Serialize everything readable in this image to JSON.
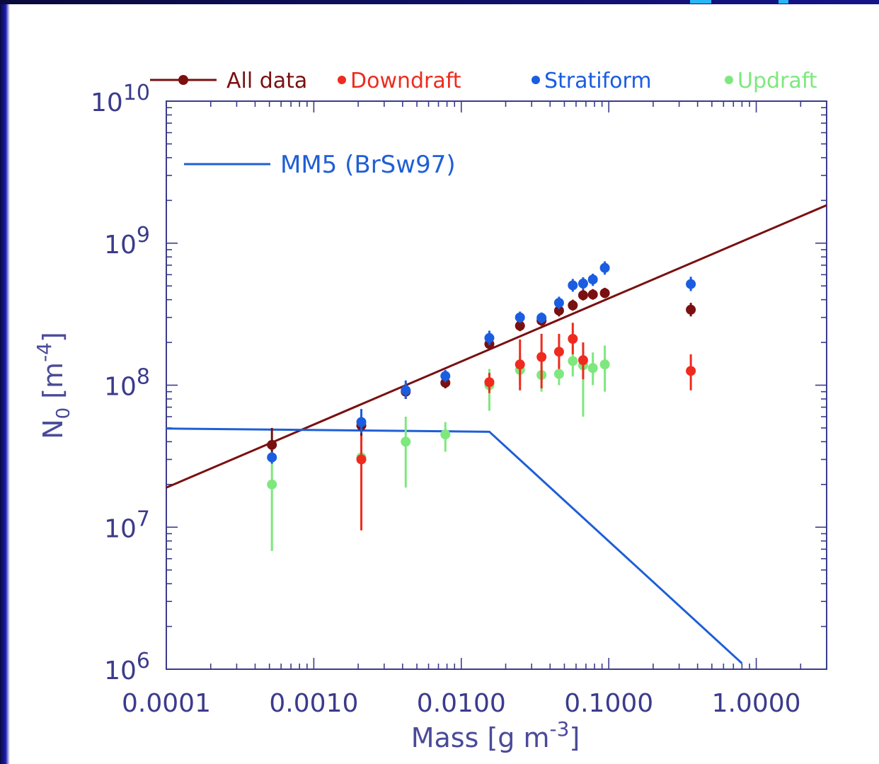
{
  "chart_data": {
    "type": "scatter",
    "xlabel": "Mass [g m",
    "xlabel_exp": "-3",
    "xlabel_close": "]",
    "ylabel": "N",
    "ylabel_sub": "0",
    "ylabel_unit": "[m",
    "ylabel_exp": "-4",
    "ylabel_close": "]",
    "x_scale": "log",
    "y_scale": "log",
    "xlim": [
      0.0001,
      3.0
    ],
    "ylim": [
      1000000,
      10000000000
    ],
    "x_tick_labels": [
      {
        "value": 0.0001,
        "label": "0.0001"
      },
      {
        "value": 0.001,
        "label": "0.0010"
      },
      {
        "value": 0.01,
        "label": "0.0100"
      },
      {
        "value": 0.1,
        "label": "0.1000"
      },
      {
        "value": 1.0,
        "label": "1.0000"
      }
    ],
    "y_tick_labels": [
      {
        "value": 1000000,
        "base": "10",
        "exp": "6"
      },
      {
        "value": 10000000,
        "base": "10",
        "exp": "7"
      },
      {
        "value": 100000000,
        "base": "10",
        "exp": "8"
      },
      {
        "value": 1000000000,
        "base": "10",
        "exp": "9"
      },
      {
        "value": 10000000000,
        "base": "10",
        "exp": "10"
      }
    ],
    "legend_top": [
      {
        "name": "All data",
        "color": "#7a1010",
        "style": "line-marker"
      },
      {
        "name": "Downdraft",
        "color": "#ee2b1e",
        "style": "marker"
      },
      {
        "name": "Stratiform",
        "color": "#1a5de0",
        "style": "marker"
      },
      {
        "name": "Updraft",
        "color": "#7de87d",
        "style": "marker"
      }
    ],
    "legend_inside": {
      "name": "MM5 (BrSw97)",
      "color": "#1f5fd6",
      "placement": "top-left"
    },
    "series": [
      {
        "name": "All data",
        "color": "#7a1010",
        "points": [
          {
            "x": 0.00052,
            "y": 38000000,
            "lo": 30000000,
            "hi": 50000000
          },
          {
            "x": 0.0021,
            "y": 52000000,
            "lo": 44000000,
            "hi": 62000000
          },
          {
            "x": 0.0042,
            "y": 90000000,
            "lo": 80000000,
            "hi": 102000000
          },
          {
            "x": 0.0078,
            "y": 104000000,
            "lo": 95000000,
            "hi": 114000000
          },
          {
            "x": 0.0155,
            "y": 195000000,
            "lo": 178000000,
            "hi": 214000000
          },
          {
            "x": 0.025,
            "y": 262000000,
            "lo": 240000000,
            "hi": 285000000
          },
          {
            "x": 0.035,
            "y": 285000000,
            "lo": 262000000,
            "hi": 310000000
          },
          {
            "x": 0.046,
            "y": 335000000,
            "lo": 305000000,
            "hi": 365000000
          },
          {
            "x": 0.057,
            "y": 365000000,
            "lo": 335000000,
            "hi": 400000000
          },
          {
            "x": 0.067,
            "y": 430000000,
            "lo": 395000000,
            "hi": 470000000
          },
          {
            "x": 0.078,
            "y": 435000000,
            "lo": 400000000,
            "hi": 475000000
          },
          {
            "x": 0.094,
            "y": 445000000,
            "lo": 410000000,
            "hi": 485000000
          },
          {
            "x": 0.36,
            "y": 340000000,
            "lo": 305000000,
            "hi": 380000000
          }
        ]
      },
      {
        "name": "Downdraft",
        "color": "#ee2b1e",
        "points": [
          {
            "x": 0.0021,
            "y": 30000000,
            "lo": 9500000,
            "hi": 45000000
          },
          {
            "x": 0.0155,
            "y": 105000000,
            "lo": 88000000,
            "hi": 122000000
          },
          {
            "x": 0.025,
            "y": 140000000,
            "lo": 92000000,
            "hi": 210000000
          },
          {
            "x": 0.035,
            "y": 158000000,
            "lo": 95000000,
            "hi": 230000000
          },
          {
            "x": 0.046,
            "y": 172000000,
            "lo": 130000000,
            "hi": 230000000
          },
          {
            "x": 0.057,
            "y": 212000000,
            "lo": 165000000,
            "hi": 275000000
          },
          {
            "x": 0.067,
            "y": 150000000,
            "lo": 110000000,
            "hi": 200000000
          },
          {
            "x": 0.36,
            "y": 126000000,
            "lo": 92000000,
            "hi": 165000000
          }
        ]
      },
      {
        "name": "Stratiform",
        "color": "#1a5de0",
        "points": [
          {
            "x": 0.00052,
            "y": 31000000,
            "lo": 28000000,
            "hi": 34000000
          },
          {
            "x": 0.0021,
            "y": 55000000,
            "lo": 46000000,
            "hi": 68000000
          },
          {
            "x": 0.0042,
            "y": 92000000,
            "lo": 80000000,
            "hi": 108000000
          },
          {
            "x": 0.0078,
            "y": 116000000,
            "lo": 105000000,
            "hi": 128000000
          },
          {
            "x": 0.0155,
            "y": 215000000,
            "lo": 192000000,
            "hi": 242000000
          },
          {
            "x": 0.025,
            "y": 300000000,
            "lo": 275000000,
            "hi": 330000000
          },
          {
            "x": 0.035,
            "y": 298000000,
            "lo": 272000000,
            "hi": 325000000
          },
          {
            "x": 0.046,
            "y": 380000000,
            "lo": 345000000,
            "hi": 420000000
          },
          {
            "x": 0.057,
            "y": 505000000,
            "lo": 455000000,
            "hi": 560000000
          },
          {
            "x": 0.067,
            "y": 520000000,
            "lo": 470000000,
            "hi": 575000000
          },
          {
            "x": 0.078,
            "y": 555000000,
            "lo": 500000000,
            "hi": 610000000
          },
          {
            "x": 0.094,
            "y": 670000000,
            "lo": 600000000,
            "hi": 745000000
          },
          {
            "x": 0.36,
            "y": 515000000,
            "lo": 460000000,
            "hi": 580000000
          }
        ]
      },
      {
        "name": "Updraft",
        "color": "#7de87d",
        "points": [
          {
            "x": 0.00052,
            "y": 20000000,
            "lo": 6800000,
            "hi": 40000000
          },
          {
            "x": 0.0021,
            "y": 31000000,
            "lo": 22000000,
            "hi": 42000000
          },
          {
            "x": 0.0042,
            "y": 40000000,
            "lo": 19000000,
            "hi": 60000000
          },
          {
            "x": 0.0078,
            "y": 45000000,
            "lo": 34000000,
            "hi": 55000000
          },
          {
            "x": 0.0155,
            "y": 100000000,
            "lo": 66000000,
            "hi": 130000000
          },
          {
            "x": 0.025,
            "y": 128000000,
            "lo": 100000000,
            "hi": 160000000
          },
          {
            "x": 0.035,
            "y": 118000000,
            "lo": 90000000,
            "hi": 150000000
          },
          {
            "x": 0.046,
            "y": 120000000,
            "lo": 100000000,
            "hi": 145000000
          },
          {
            "x": 0.057,
            "y": 148000000,
            "lo": 115000000,
            "hi": 190000000
          },
          {
            "x": 0.067,
            "y": 138000000,
            "lo": 60000000,
            "hi": 200000000
          },
          {
            "x": 0.078,
            "y": 132000000,
            "lo": 100000000,
            "hi": 170000000
          },
          {
            "x": 0.094,
            "y": 140000000,
            "lo": 90000000,
            "hi": 190000000
          }
        ]
      }
    ],
    "fit_line": {
      "name": "All data fit",
      "color": "#7a1010",
      "points": [
        [
          0.0001,
          19000000
        ],
        [
          3.0,
          1850000000
        ]
      ]
    },
    "model_line": {
      "name": "MM5 (BrSw97)",
      "color": "#1f5fd6",
      "points": [
        [
          0.0001,
          49500000
        ],
        [
          0.0155,
          47000000
        ],
        [
          0.8,
          1100000
        ]
      ]
    }
  },
  "colors": {
    "axis": "#3b3b8c",
    "tick_text": "#3b3b8c",
    "label_text": "#4a4a9a"
  }
}
